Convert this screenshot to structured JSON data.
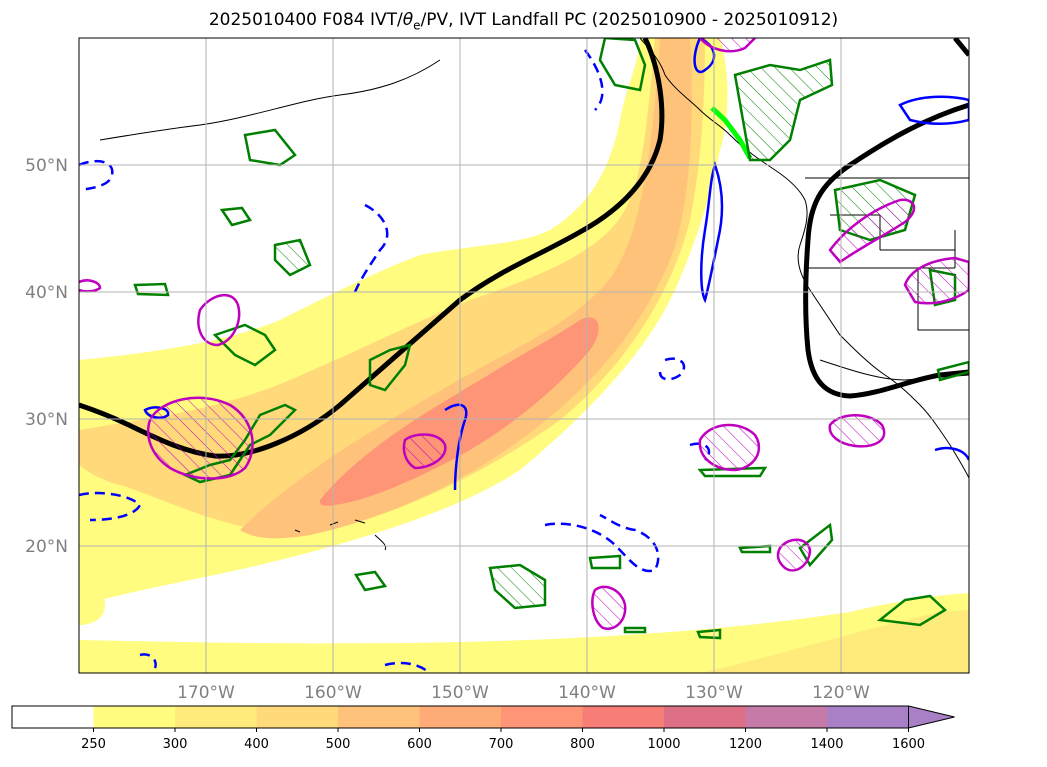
{
  "title": {
    "prefix": "2025010400 F084 IVT/",
    "theta": "θ",
    "sub": "e",
    "suffix": "/PV, IVT Landfall PC (2025010900 - 2025010912)"
  },
  "lat_labels": [
    "50°N",
    "40°N",
    "30°N",
    "20°N"
  ],
  "lon_labels": [
    "170°W",
    "160°W",
    "150°W",
    "140°W",
    "130°W",
    "120°W"
  ],
  "colorbar": {
    "ticks": [
      "250",
      "300",
      "400",
      "500",
      "600",
      "700",
      "800",
      "1000",
      "1200",
      "1400",
      "1600"
    ],
    "colors": [
      "#ffffff",
      "#fffc7f",
      "#ffeb7b",
      "#ffd97a",
      "#ffc27a",
      "#ffab78",
      "#fe9577",
      "#f77d77",
      "#dd7086",
      "#c67aa8",
      "#a97fc6"
    ]
  },
  "map_colors": {
    "ocean": "#ffffff",
    "ivt_low": "#fffc7f",
    "ivt_mid": "#ffd97a",
    "ivt_high": "#fe9577",
    "landfall_line": "#000000",
    "pv_positive": "#008000",
    "pv_negative": "#0000ff",
    "theta_e": "#bf00bf",
    "landfall_coast": "#00ff00"
  }
}
